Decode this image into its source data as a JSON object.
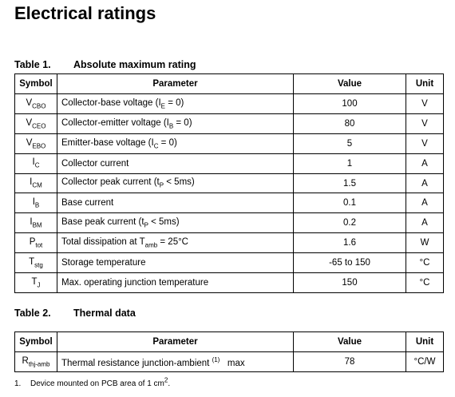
{
  "title": "Electrical ratings",
  "table1": {
    "label": "Table 1.",
    "caption": "Absolute maximum rating",
    "columns": [
      "Symbol",
      "Parameter",
      "Value",
      "Unit"
    ],
    "rows": [
      {
        "symbol": [
          "V",
          {
            "sub": "CBO"
          }
        ],
        "parameter": [
          "Collector-base voltage (I",
          {
            "sub": "E"
          },
          " = 0)"
        ],
        "value": 100,
        "unit": "V"
      },
      {
        "symbol": [
          "V",
          {
            "sub": "CEO"
          }
        ],
        "parameter": [
          "Collector-emitter voltage (I",
          {
            "sub": "B"
          },
          " = 0)"
        ],
        "value": 80,
        "unit": "V"
      },
      {
        "symbol": [
          "V",
          {
            "sub": "EBO"
          }
        ],
        "parameter": [
          "Emitter-base voltage (I",
          {
            "sub": "C"
          },
          " = 0)"
        ],
        "value": 5,
        "unit": "V"
      },
      {
        "symbol": [
          "I",
          {
            "sub": "C"
          }
        ],
        "parameter": [
          "Collector current"
        ],
        "value": 1,
        "unit": "A"
      },
      {
        "symbol": [
          "I",
          {
            "sub": "CM"
          }
        ],
        "parameter": [
          "Collector peak current (t",
          {
            "sub": "P"
          },
          " < 5ms)"
        ],
        "value": 1.5,
        "unit": "A"
      },
      {
        "symbol": [
          "I",
          {
            "sub": "B"
          }
        ],
        "parameter": [
          "Base current"
        ],
        "value": 0.1,
        "unit": "A"
      },
      {
        "symbol": [
          "I",
          {
            "sub": "BM"
          }
        ],
        "parameter": [
          "Base peak current (t",
          {
            "sub": "P"
          },
          " < 5ms)"
        ],
        "value": 0.2,
        "unit": "A"
      },
      {
        "symbol": [
          "P",
          {
            "sub": "tot"
          }
        ],
        "parameter": [
          "Total dissipation at T",
          {
            "sub": "amb"
          },
          " = 25°C"
        ],
        "value": 1.6,
        "unit": "W"
      },
      {
        "symbol": [
          "T",
          {
            "sub": "stg"
          }
        ],
        "parameter": [
          "Storage temperature"
        ],
        "value": "-65 to 150",
        "unit": "°C"
      },
      {
        "symbol": [
          "T",
          {
            "sub": "J"
          }
        ],
        "parameter": [
          "Max. operating junction temperature"
        ],
        "value": 150,
        "unit": "°C"
      }
    ]
  },
  "table2": {
    "label": "Table 2.",
    "caption": "Thermal data",
    "columns": [
      "Symbol",
      "Parameter",
      "Value",
      "Unit"
    ],
    "rows": [
      {
        "symbol": [
          "R",
          {
            "sub": "thj-amb"
          }
        ],
        "parameter": [
          "Thermal resistance junction-ambient ",
          {
            "sup": "(1)"
          },
          "   max"
        ],
        "value": 78,
        "unit": "°C/W"
      }
    ]
  },
  "footnote": {
    "number": "1.",
    "text": [
      "Device mounted on PCB area of 1 cm",
      {
        "sup": "2"
      },
      "."
    ]
  }
}
